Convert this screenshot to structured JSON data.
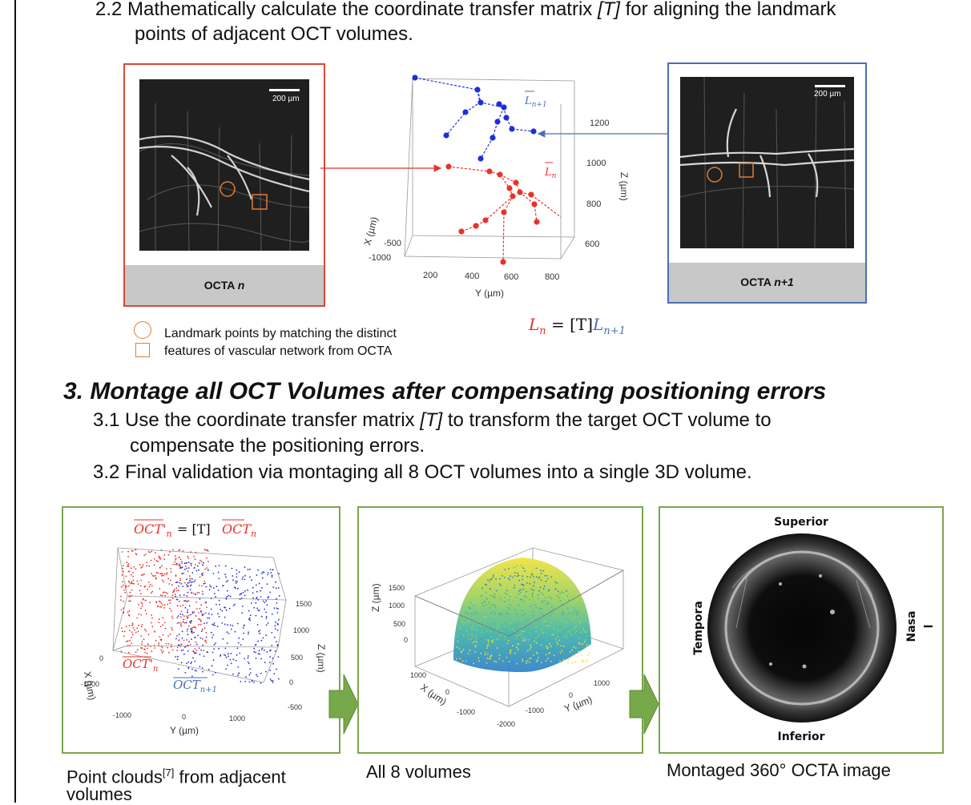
{
  "step_2_2": {
    "line1_a": "2.2 Mathematically calculate the coordinate transfer matrix ",
    "line1_matrix": "[T]",
    "line1_b": " for aligning the landmark",
    "line2": "points of adjacent OCT volumes."
  },
  "octa_left": {
    "scale": "200 µm",
    "caption_prefix": "OCTA ",
    "caption_var": "n"
  },
  "octa_right": {
    "scale": "200 µm",
    "caption_prefix": "OCTA ",
    "caption_var": "n+1"
  },
  "landmark_plot": {
    "x_axis_label": "Y (µm)",
    "y_axis_label": "X (µm)",
    "z_axis_label": "Z (µm)",
    "y_ticks": [
      "200",
      "400",
      "600",
      "800"
    ],
    "x_ticks": [
      "-500",
      "-1000"
    ],
    "z_ticks": [
      "1200",
      "1000",
      "800",
      "600"
    ],
    "label_blue": "L",
    "label_blue_sub": "n+1",
    "label_red": "L",
    "label_red_sub": "n",
    "colors": {
      "red_series": "#e8322a",
      "blue_series": "#1f2fd6"
    }
  },
  "equation": {
    "lhs": "L",
    "lhs_sub": "n",
    "middle": " = [T]",
    "rhs": "L",
    "rhs_sub": "n+1"
  },
  "legend": {
    "line1": "Landmark points by matching the distinct",
    "line2": "features of vascular network from OCTA",
    "marker_color": "#e07b39"
  },
  "section_3": {
    "heading": "3. Montage all OCT Volumes after compensating positioning errors",
    "line1_a": "3.1 Use the coordinate transfer matrix ",
    "line1_matrix": "[T]",
    "line1_b": " to transform the target OCT volume to",
    "line2": "compensate the positioning errors.",
    "line3": "3.2 Final validation via montaging all 8 OCT volumes into a single 3D volume."
  },
  "panel_point_cloud": {
    "equation_lhs": "OCT'",
    "equation_lhs_sub": "n",
    "equation_mid": " = [T]",
    "equation_rhs": "OCT",
    "equation_rhs_sub": "n",
    "label_red": "OCT'",
    "label_red_sub": "n",
    "label_blue": "OCT",
    "label_blue_sub": "n+1",
    "x_axis_label": "Y (µm)",
    "y_axis_label": "X (µm)",
    "z_axis_label": "Z (µm)",
    "y_ticks": [
      "-1000",
      "0",
      "1000"
    ],
    "x_ticks": [
      "0",
      "-1000"
    ],
    "z_ticks": [
      "1500",
      "1000",
      "500",
      "0",
      "-500"
    ],
    "caption_a": "Point clouds",
    "caption_ref": "[7]",
    "caption_b": " from adjacent",
    "caption_line2": "volumes"
  },
  "panel_all_volumes": {
    "z_axis_label": "Z (µm)",
    "x_axis_label": "X (µm)",
    "y_axis_label": "Y (µm)",
    "z_ticks": [
      "1500",
      "1000",
      "500",
      "0"
    ],
    "x_ticks": [
      "1000",
      "0",
      "-1000"
    ],
    "y_ticks": [
      "1000",
      "0",
      "-1000",
      "-2000"
    ],
    "caption": "All 8 volumes"
  },
  "panel_montage": {
    "superior": "Superior",
    "inferior": "Inferior",
    "temporal": "Tempora",
    "nasal": "Nasa",
    "nasal_tail": "l",
    "caption": "Montaged 360° OCTA image"
  },
  "colors": {
    "panel_border": "#7aa64b",
    "arrow_fill": "#77a84a",
    "left_box": "#d9473a",
    "right_box": "#4a6fb5",
    "caption_bg": "#c8c8c8"
  }
}
